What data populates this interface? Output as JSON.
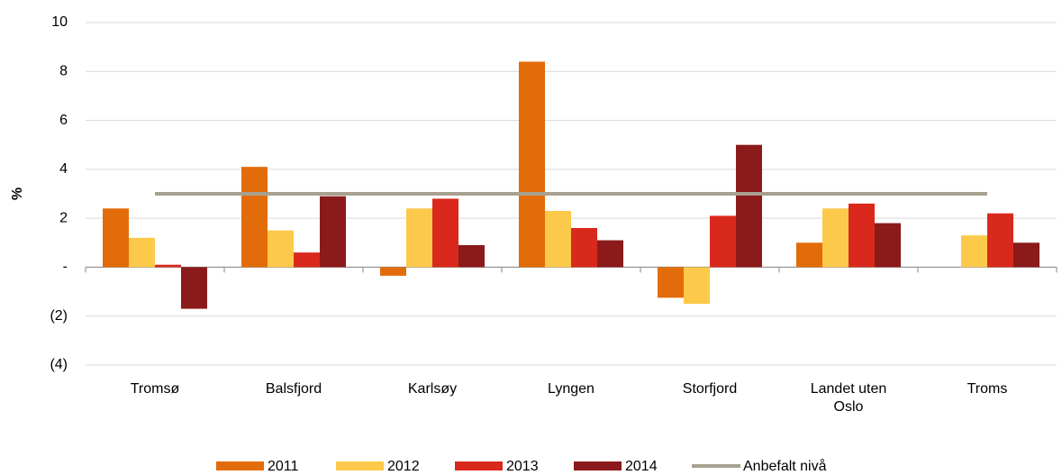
{
  "chart_data": {
    "type": "bar",
    "y_label": "%",
    "categories": [
      "Tromsø",
      "Balsfjord",
      "Karlsøy",
      "Lyngen",
      "Storfjord",
      "Landet uten Oslo",
      "Troms"
    ],
    "series": [
      {
        "name": "2011",
        "color": "#e36c0a",
        "values": [
          2.4,
          4.1,
          -0.35,
          8.4,
          -1.25,
          1.0,
          0
        ]
      },
      {
        "name": "2012",
        "color": "#fdc94a",
        "values": [
          1.2,
          1.5,
          2.4,
          2.3,
          -1.5,
          2.4,
          1.3
        ]
      },
      {
        "name": "2013",
        "color": "#d9291c",
        "values": [
          0.1,
          0.6,
          2.8,
          1.6,
          2.1,
          2.6,
          2.2
        ]
      },
      {
        "name": "2014",
        "color": "#8b1a1a",
        "values": [
          -1.7,
          2.9,
          0.9,
          1.1,
          5.0,
          1.8,
          1.0
        ]
      },
      {
        "name": "Anbefalt nivå",
        "color": "#a8a190",
        "type": "line",
        "values": [
          3,
          3,
          3,
          3,
          3,
          3,
          3
        ]
      }
    ],
    "ylim": [
      -4,
      10
    ],
    "yticks": [
      {
        "value": -4,
        "label": "(4)"
      },
      {
        "value": -2,
        "label": "(2)"
      },
      {
        "value": 0,
        "label": "-"
      },
      2,
      4,
      6,
      8,
      10
    ],
    "grid": true
  }
}
